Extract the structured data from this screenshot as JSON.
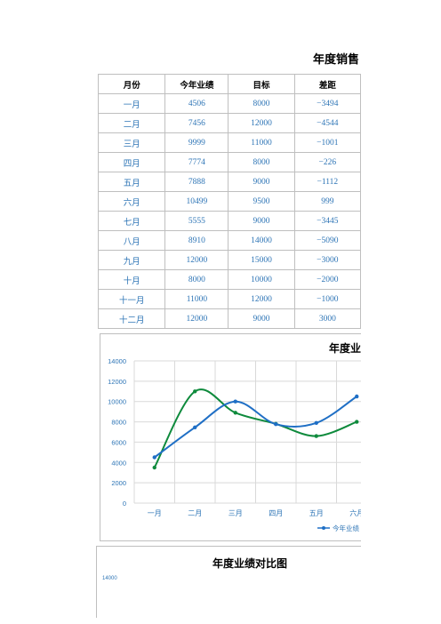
{
  "page_title": "年度销售",
  "table": {
    "headers": [
      "月份",
      "今年业绩",
      "目标",
      "差距"
    ],
    "rows": [
      [
        "一月",
        "4506",
        "8000",
        "−3494"
      ],
      [
        "二月",
        "7456",
        "12000",
        "−4544"
      ],
      [
        "三月",
        "9999",
        "11000",
        "−1001"
      ],
      [
        "四月",
        "7774",
        "8000",
        "−226"
      ],
      [
        "五月",
        "7888",
        "9000",
        "−1112"
      ],
      [
        "六月",
        "10499",
        "9500",
        "999"
      ],
      [
        "七月",
        "5555",
        "9000",
        "−3445"
      ],
      [
        "八月",
        "8910",
        "14000",
        "−5090"
      ],
      [
        "九月",
        "12000",
        "15000",
        "−3000"
      ],
      [
        "十月",
        "8000",
        "10000",
        "−2000"
      ],
      [
        "十一月",
        "11000",
        "12000",
        "−1000"
      ],
      [
        "十二月",
        "12000",
        "9000",
        "3000"
      ]
    ]
  },
  "chart_data": [
    {
      "type": "line",
      "title": "年度业绩",
      "categories": [
        "一月",
        "二月",
        "三月",
        "四月",
        "五月",
        "六月"
      ],
      "series": [
        {
          "name": "今年业绩",
          "color": "#1f6fc5",
          "values": [
            4506,
            7456,
            9999,
            7774,
            7888,
            10499
          ]
        },
        {
          "color": "#0e8a3c",
          "values": [
            3500,
            11000,
            8900,
            7800,
            6600,
            8000
          ]
        }
      ],
      "ylim": [
        0,
        14000
      ],
      "yticks": [
        "0",
        "2000",
        "4000",
        "6000",
        "8000",
        "10000",
        "12000",
        "14000"
      ],
      "grid": true,
      "legend": "bottom"
    },
    {
      "type": "line",
      "title": "年度业绩对比图",
      "yticks_visible": [
        "14000"
      ]
    }
  ]
}
